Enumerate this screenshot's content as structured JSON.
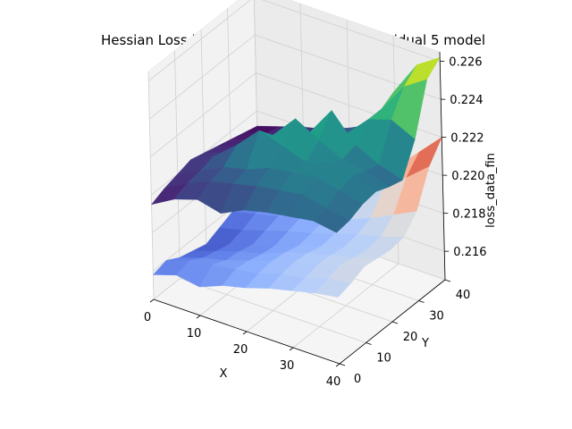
{
  "chart_data": {
    "type": "surface3d",
    "title": "Hessian Loss landscape surface of the individual 5 model",
    "xlabel": "X",
    "ylabel": "Y",
    "zlabel": "loss_data_fin",
    "xlim": [
      0,
      40
    ],
    "ylim": [
      0,
      40
    ],
    "zlim": [
      0.2145,
      0.2265
    ],
    "x_ticks": [
      "0",
      "10",
      "20",
      "30",
      "40"
    ],
    "y_ticks": [
      "0",
      "10",
      "20",
      "30",
      "40"
    ],
    "z_ticks": [
      "0.216",
      "0.218",
      "0.220",
      "0.222",
      "0.224",
      "0.226"
    ],
    "grid": true,
    "colormap_main": "viridis",
    "colormap_lower": "coolwarm",
    "pane_color": "#f2f2f2",
    "grid_color": "#d0d0d0",
    "x_samples": [
      0,
      5,
      10,
      15,
      20,
      25,
      30,
      35,
      40
    ],
    "y_samples": [
      0,
      5,
      10,
      15,
      20,
      25,
      30,
      35,
      40
    ],
    "z_main": [
      [
        0.2195,
        0.2202,
        0.2206,
        0.2203,
        0.2209,
        0.2212,
        0.2214,
        0.2216,
        0.2214
      ],
      [
        0.2198,
        0.2205,
        0.221,
        0.2213,
        0.2216,
        0.2218,
        0.222,
        0.2217,
        0.2215
      ],
      [
        0.22,
        0.2206,
        0.2212,
        0.2215,
        0.222,
        0.2222,
        0.2224,
        0.2221,
        0.2218
      ],
      [
        0.2202,
        0.2208,
        0.2218,
        0.223,
        0.2226,
        0.2222,
        0.2226,
        0.2223,
        0.2219
      ],
      [
        0.22,
        0.2204,
        0.2212,
        0.2222,
        0.2235,
        0.2228,
        0.2222,
        0.222,
        0.2216
      ],
      [
        0.2198,
        0.2202,
        0.2208,
        0.2216,
        0.2222,
        0.2238,
        0.2224,
        0.2218,
        0.2214
      ],
      [
        0.2196,
        0.22,
        0.2204,
        0.2208,
        0.2214,
        0.222,
        0.2232,
        0.2236,
        0.223
      ],
      [
        0.2194,
        0.2198,
        0.2202,
        0.2204,
        0.221,
        0.2216,
        0.2232,
        0.2248,
        0.2256
      ],
      [
        0.2192,
        0.2196,
        0.22,
        0.2203,
        0.2208,
        0.2214,
        0.2236,
        0.2254,
        0.2262
      ]
    ],
    "z_lower": [
      [
        0.2158,
        0.2162,
        0.216,
        0.2165,
        0.2168,
        0.2172,
        0.2175,
        0.2178,
        0.218
      ],
      [
        0.216,
        0.2164,
        0.2166,
        0.2168,
        0.217,
        0.2174,
        0.2176,
        0.218,
        0.2182
      ],
      [
        0.2156,
        0.216,
        0.2163,
        0.2167,
        0.2171,
        0.2175,
        0.2178,
        0.2182,
        0.2185
      ],
      [
        0.2154,
        0.2158,
        0.2162,
        0.2165,
        0.217,
        0.2174,
        0.2177,
        0.218,
        0.2184
      ],
      [
        0.2152,
        0.2156,
        0.216,
        0.2164,
        0.2168,
        0.2172,
        0.2176,
        0.2179,
        0.2183
      ],
      [
        0.2155,
        0.2158,
        0.2162,
        0.2166,
        0.2169,
        0.2173,
        0.2177,
        0.218,
        0.2184
      ],
      [
        0.2158,
        0.2161,
        0.2164,
        0.2168,
        0.2171,
        0.2175,
        0.218,
        0.2186,
        0.2192
      ],
      [
        0.216,
        0.2163,
        0.2166,
        0.217,
        0.2174,
        0.218,
        0.219,
        0.22,
        0.221
      ],
      [
        0.2162,
        0.2165,
        0.2168,
        0.2172,
        0.2178,
        0.2186,
        0.2196,
        0.2208,
        0.222
      ]
    ]
  }
}
